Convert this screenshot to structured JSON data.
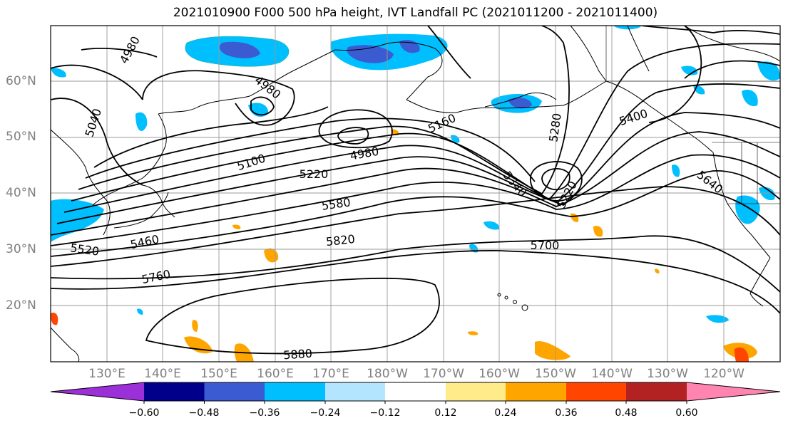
{
  "title": "2021010900 F000 500 hPa height, IVT Landfall PC (2021011200 - 2021011400)",
  "map": {
    "lat_labels": [
      "60°N",
      "50°N",
      "40°N",
      "30°N",
      "20°N"
    ],
    "lon_labels": [
      "130°E",
      "140°E",
      "150°E",
      "160°E",
      "170°E",
      "180°W",
      "170°W",
      "160°W",
      "150°W",
      "140°W",
      "130°W",
      "120°W"
    ],
    "contour_labels": [
      "4980",
      "4980",
      "4980",
      "5040",
      "5100",
      "5160",
      "5220",
      "5220",
      "5280",
      "5340",
      "5400",
      "5460",
      "5520",
      "5580",
      "5640",
      "5700",
      "5760",
      "5820",
      "5880"
    ]
  },
  "colorbar": {
    "tick_labels": [
      "−0.60",
      "−0.48",
      "−0.36",
      "−0.24",
      "−0.12",
      "0.12",
      "0.24",
      "0.36",
      "0.48",
      "0.60"
    ],
    "colors": [
      "#9b30d9",
      "#00008b",
      "#3b5bd3",
      "#00bfff",
      "#b3e5ff",
      "#ffffff",
      "#ffeb8a",
      "#ffa500",
      "#ff4500",
      "#b22222",
      "#ff85b0"
    ]
  }
}
